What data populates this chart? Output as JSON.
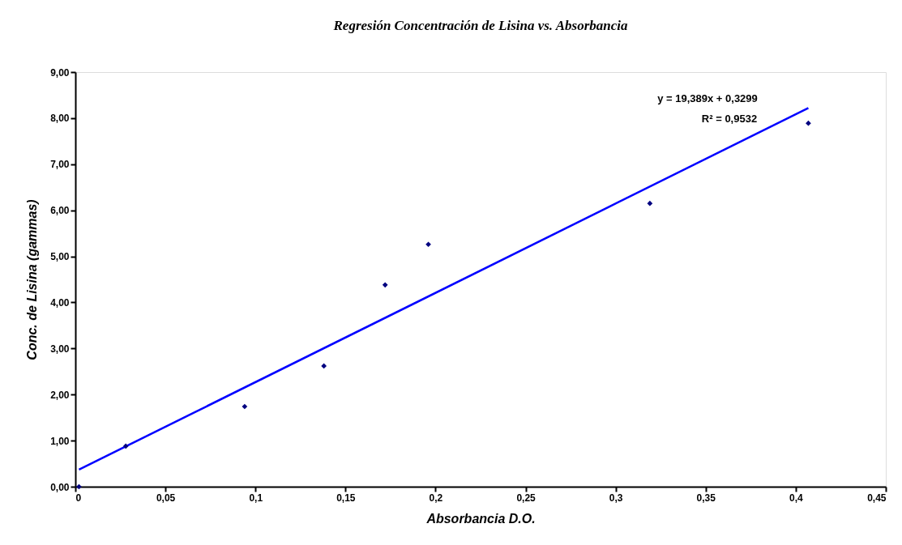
{
  "chart_data": {
    "type": "scatter",
    "title": "Regresión Concentración de Lisina vs. Absorbancia",
    "xlabel": "Absorbancia D.O.",
    "ylabel": "Conc. de Lisina (gammas)",
    "grid": false,
    "xlim": [
      0,
      0.45
    ],
    "xticks": [
      0,
      {
        "value": 0.05,
        "label": "0,05"
      },
      {
        "value": 0.1,
        "label": "0,1"
      },
      {
        "value": 0.15,
        "label": "0,15"
      },
      {
        "value": 0.2,
        "label": "0,2"
      },
      {
        "value": 0.25,
        "label": "0,25"
      },
      {
        "value": 0.3,
        "label": "0,3"
      },
      {
        "value": 0.35,
        "label": "0,35"
      },
      {
        "value": 0.4,
        "label": "0,4"
      },
      {
        "value": 0.45,
        "label": "0,45"
      }
    ],
    "ylim": [
      0,
      9
    ],
    "yticks": [
      {
        "value": 0,
        "label": "0,00"
      },
      {
        "value": 1,
        "label": "1,00"
      },
      {
        "value": 2,
        "label": "2,00"
      },
      {
        "value": 3,
        "label": "3,00"
      },
      {
        "value": 4,
        "label": "4,00"
      },
      {
        "value": 5,
        "label": "5,00"
      },
      {
        "value": 6,
        "label": "6,00"
      },
      {
        "value": 7,
        "label": "7,00"
      },
      {
        "value": 8,
        "label": "8,00"
      },
      {
        "value": 9,
        "label": "9,00"
      }
    ],
    "series": [
      {
        "marker": "diamond",
        "color": "#000080",
        "x": [
          0.002,
          0.028,
          0.094,
          0.138,
          0.172,
          0.196,
          0.319,
          0.407
        ],
        "values": [
          0.0,
          0.88,
          1.74,
          2.62,
          4.38,
          5.26,
          6.15,
          7.89
        ]
      },
      {
        "type": "line",
        "color": "#0000ff",
        "x": [
          0.002,
          0.407
        ],
        "values": [
          0.37,
          8.22
        ]
      }
    ],
    "annotations": [
      "y = 19,389x + 0,3299",
      "R² = 0,9532"
    ]
  }
}
